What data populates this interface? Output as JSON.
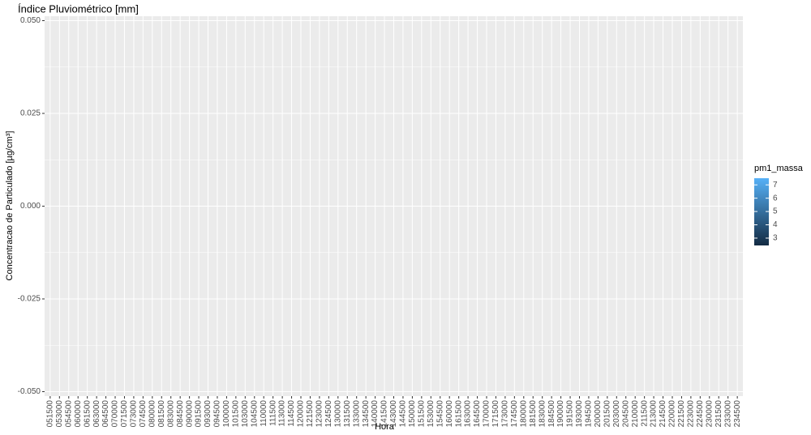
{
  "chart_data": {
    "type": "bar",
    "title": "Índice Pluviométrico [mm]",
    "x_label": "Hora",
    "y_label": "Concentracao de Particulado [µg/cm³]",
    "categories": [
      "051500",
      "053000",
      "054500",
      "060000",
      "061500",
      "063000",
      "064500",
      "070000",
      "071500",
      "073000",
      "074500",
      "080000",
      "081500",
      "083000",
      "084500",
      "090000",
      "091500",
      "093000",
      "094500",
      "100000",
      "101500",
      "103000",
      "104500",
      "110000",
      "111500",
      "113000",
      "114500",
      "120000",
      "121500",
      "123000",
      "124500",
      "130000",
      "131500",
      "133000",
      "134500",
      "140000",
      "141500",
      "143000",
      "144500",
      "150000",
      "151500",
      "153000",
      "154500",
      "160000",
      "161500",
      "163000",
      "164500",
      "170000",
      "171500",
      "173000",
      "174500",
      "180000",
      "181500",
      "183000",
      "184500",
      "190000",
      "191500",
      "193000",
      "194500",
      "200000",
      "201500",
      "203000",
      "204500",
      "210000",
      "211500",
      "213000",
      "214500",
      "220000",
      "221500",
      "223000",
      "224500",
      "230000",
      "231500",
      "233000",
      "234500"
    ],
    "ylim": [
      -0.0512,
      0.0512
    ],
    "yticks": [
      {
        "value": -0.05,
        "label": "-0.050"
      },
      {
        "value": -0.025,
        "label": "-0.025"
      },
      {
        "value": 0,
        "label": "0.000"
      },
      {
        "value": 0.025,
        "label": "0.025"
      },
      {
        "value": 0.05,
        "label": "0.050"
      }
    ],
    "grid": true,
    "legend": {
      "title": "pm1_massa",
      "position": "right",
      "lim": [
        2.45,
        7.5
      ],
      "ticks": [
        3,
        4,
        5,
        6,
        7
      ],
      "colors": [
        "#132B43",
        "#56B1F7"
      ]
    }
  }
}
